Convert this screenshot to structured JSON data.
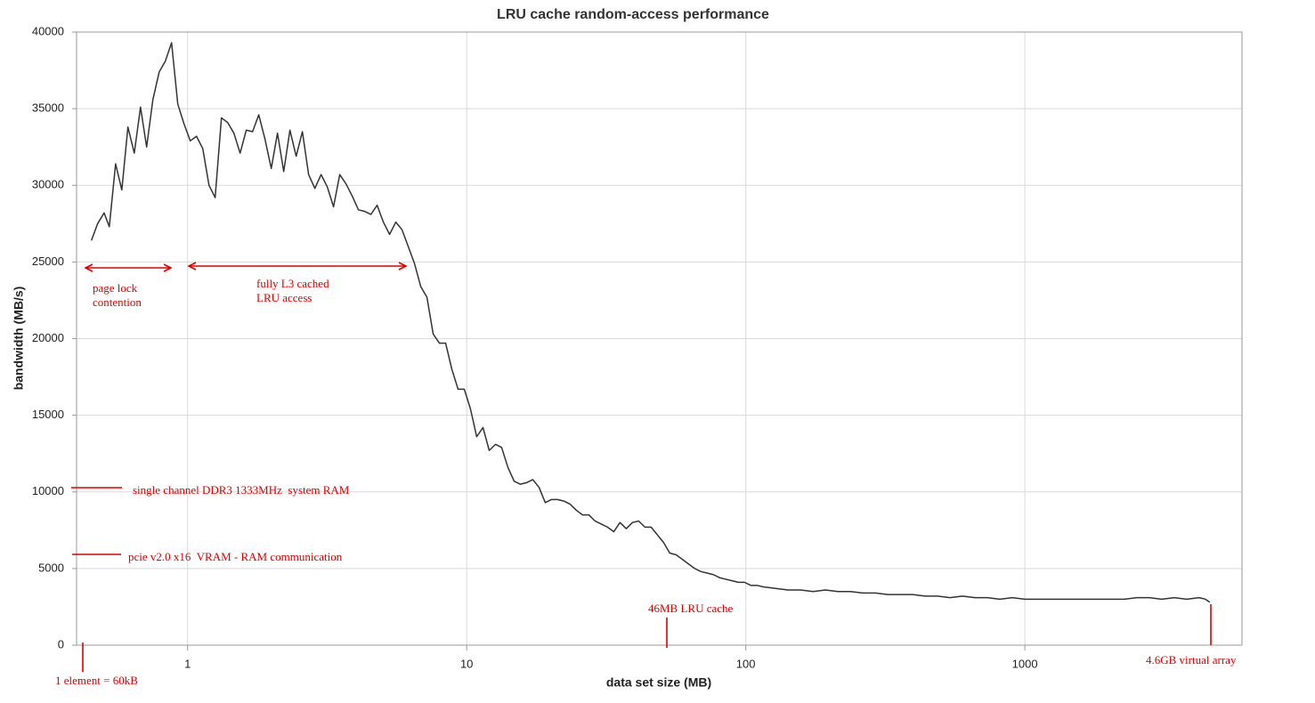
{
  "chart_data": {
    "type": "line",
    "title": "LRU cache random-access performance",
    "xlabel": "data set size (MB)",
    "ylabel": "bandwidth (MB/s)",
    "xscale": "log",
    "xlim": [
      0.4,
      6000
    ],
    "xticks": [
      1,
      10,
      100,
      1000
    ],
    "ylim": [
      0,
      40000
    ],
    "yticks": [
      0,
      5000,
      10000,
      15000,
      20000,
      25000,
      30000,
      35000,
      40000
    ],
    "grid": true,
    "annotations": {
      "page_lock": [
        "page lock",
        "contention"
      ],
      "l3": [
        "fully L3 cached",
        "LRU access"
      ],
      "ddr3": "single channel DDR3 1333MHz  system RAM",
      "pcie": "pcie v2.0 x16  VRAM - RAM communication",
      "lru46": "46MB LRU cache",
      "virtual": "4.6GB virtual array",
      "element": "1 element = 60kB"
    },
    "series": [
      {
        "name": "bandwidth",
        "color": "#333333",
        "x": [
          0.452,
          0.476,
          0.502,
          0.524,
          0.552,
          0.581,
          0.611,
          0.644,
          0.678,
          0.713,
          0.751,
          0.791,
          0.832,
          0.876,
          0.922,
          0.971,
          1.022,
          1.076,
          1.133,
          1.193,
          1.255,
          1.322,
          1.391,
          1.465,
          1.542,
          1.623,
          1.709,
          1.799,
          1.894,
          1.994,
          2.099,
          2.21,
          2.326,
          2.449,
          2.578,
          2.714,
          2.857,
          3.008,
          3.166,
          3.333,
          3.509,
          3.694,
          3.889,
          4.094,
          4.31,
          4.537,
          4.776,
          5.028,
          5.293,
          5.572,
          5.866,
          6.175,
          6.501,
          6.843,
          7.204,
          7.584,
          7.984,
          8.405,
          8.848,
          9.314,
          9.804,
          10.32,
          10.86,
          11.44,
          12.04,
          12.68,
          13.34,
          14.05,
          14.79,
          15.57,
          16.39,
          17.25,
          18.16,
          19.12,
          20.13,
          21.19,
          22.3,
          23.48,
          24.72,
          26.02,
          27.4,
          28.84,
          30.36,
          31.96,
          33.65,
          35.42,
          37.29,
          39.26,
          41.33,
          43.51,
          45.8,
          48.22,
          50.76,
          53.44,
          56.25,
          59.22,
          62.34,
          65.62,
          69.09,
          72.73,
          76.56,
          80.6,
          84.85,
          89.33,
          94.0,
          99.0,
          104.2,
          109.7,
          115.5,
          128.0,
          141.8,
          157.2,
          174.2,
          193.1,
          213.9,
          237.1,
          262.7,
          291.2,
          322.7,
          357.6,
          396.3,
          439.2,
          486.7,
          539.5,
          597.8,
          662.5,
          734.2,
          813.7,
          901.7,
          999,
          1108,
          1227,
          1360,
          1507,
          1671,
          1851,
          2052,
          2274,
          2520,
          2793,
          3095,
          3430,
          3801,
          4212,
          4435,
          4600
        ],
        "values": [
          26400,
          27500,
          28200,
          27300,
          31400,
          29700,
          33800,
          32100,
          35100,
          32500,
          35600,
          37400,
          38100,
          39300,
          35300,
          34000,
          32900,
          33200,
          32400,
          30000,
          29200,
          34400,
          34100,
          33400,
          32100,
          33600,
          33500,
          34600,
          33000,
          31100,
          33400,
          30900,
          33600,
          31900,
          33500,
          30700,
          29800,
          30700,
          29900,
          28600,
          30700,
          30100,
          29300,
          28400,
          28300,
          28100,
          28700,
          27600,
          26800,
          27600,
          27100,
          26000,
          24900,
          23400,
          22700,
          20300,
          19700,
          19700,
          18000,
          16700,
          16700,
          15400,
          13600,
          14200,
          12700,
          13100,
          12900,
          11600,
          10700,
          10500,
          10600,
          10800,
          10300,
          9300,
          9500,
          9500,
          9400,
          9200,
          8800,
          8500,
          8500,
          8100,
          7900,
          7700,
          7400,
          8000,
          7600,
          8000,
          8100,
          7700,
          7700,
          7200,
          6700,
          6000,
          5900,
          5600,
          5300,
          5000,
          4800,
          4700,
          4600,
          4400,
          4300,
          4200,
          4100,
          4100,
          3900,
          3900,
          3800,
          3700,
          3600,
          3600,
          3500,
          3600,
          3500,
          3500,
          3400,
          3400,
          3300,
          3300,
          3300,
          3200,
          3200,
          3100,
          3200,
          3100,
          3100,
          3000,
          3100,
          3000,
          3000,
          3000,
          3000,
          3000,
          3000,
          3000,
          3000,
          3000,
          3100,
          3100,
          3000,
          3100,
          3000,
          3100,
          3000,
          2800
        ]
      }
    ]
  }
}
